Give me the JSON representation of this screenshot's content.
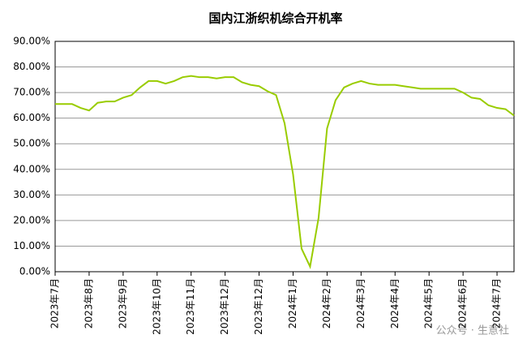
{
  "chart_data": {
    "type": "line",
    "title": "国内江浙织机综合开机率",
    "categories": [
      "2023年7月",
      null,
      null,
      null,
      "2023年8月",
      null,
      null,
      null,
      "2023年9月",
      null,
      null,
      null,
      "2023年10月",
      null,
      null,
      null,
      "2023年11月",
      null,
      null,
      null,
      "2023年12月",
      null,
      null,
      null,
      "2023年12月",
      null,
      null,
      null,
      "2024年1月",
      null,
      null,
      null,
      "2024年2月",
      null,
      null,
      null,
      "2024年3月",
      null,
      null,
      null,
      "2024年4月",
      null,
      null,
      null,
      "2024年5月",
      null,
      null,
      null,
      "2024年6月",
      null,
      null,
      null,
      "2024年7月",
      null,
      null
    ],
    "series": [
      {
        "name": "开机率",
        "color": "#99cc00",
        "values": [
          65.5,
          65.5,
          65.5,
          64,
          63,
          66,
          66.5,
          66.5,
          68,
          69,
          72,
          74.5,
          74.5,
          73.5,
          74.5,
          76,
          76.5,
          76,
          76,
          75.5,
          76,
          76,
          74,
          73,
          72.5,
          70.5,
          69,
          58,
          38,
          9,
          2,
          21,
          56,
          67,
          72,
          73.5,
          74.5,
          73.5,
          73,
          73,
          73,
          72.5,
          72,
          71.5,
          71.5,
          71.5,
          71.5,
          71.5,
          70,
          68,
          67.5,
          65,
          64,
          63.5,
          61
        ]
      }
    ],
    "ylim": [
      0,
      90
    ],
    "yticks": [
      {
        "value": 0,
        "label": "0.00%"
      },
      {
        "value": 10,
        "label": "10.00%"
      },
      {
        "value": 20,
        "label": "20.00%"
      },
      {
        "value": 30,
        "label": "30.00%"
      },
      {
        "value": 40,
        "label": "40.00%"
      },
      {
        "value": 50,
        "label": "50.00%"
      },
      {
        "value": 60,
        "label": "60.00%"
      },
      {
        "value": 70,
        "label": "70.00%"
      },
      {
        "value": 80,
        "label": "80.00%"
      },
      {
        "value": 90,
        "label": "90.00%"
      }
    ],
    "grid": true,
    "watermark": "公众号 · 生意社"
  }
}
